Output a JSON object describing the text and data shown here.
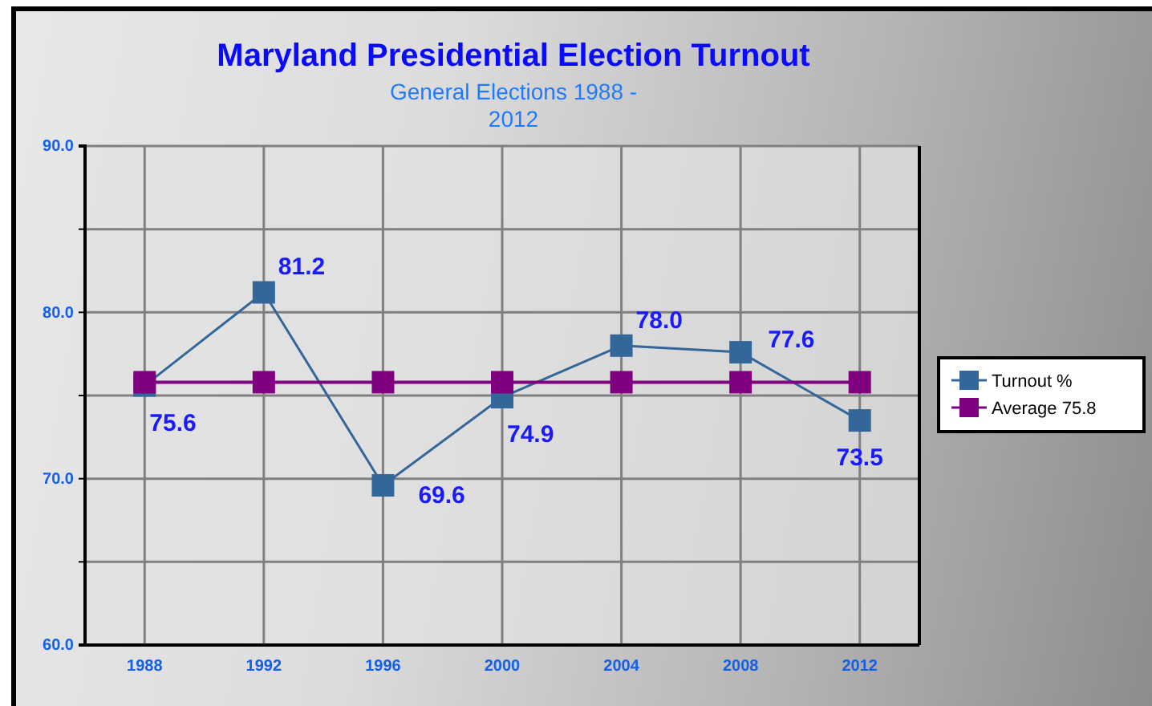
{
  "chart_data": {
    "type": "line",
    "title": "Maryland Presidential Election Turnout",
    "subtitle": "General Elections 1988 - 2012",
    "categories": [
      "1988",
      "1992",
      "1996",
      "2000",
      "2004",
      "2008",
      "2012"
    ],
    "series": [
      {
        "name": "Turnout %",
        "color": "#336699",
        "values": [
          75.6,
          81.2,
          69.6,
          74.9,
          78.0,
          77.6,
          73.5
        ],
        "value_labels": [
          "75.6",
          "81.2",
          "69.6",
          "74.9",
          "78.0",
          "77.6",
          "73.5"
        ]
      },
      {
        "name": "Average 75.8",
        "color": "#800080",
        "values": [
          75.8,
          75.8,
          75.8,
          75.8,
          75.8,
          75.8,
          75.8
        ]
      }
    ],
    "ylim": [
      60,
      90
    ],
    "yticks": [
      {
        "value": 60,
        "label": "60.0"
      },
      {
        "value": 65,
        "label": null
      },
      {
        "value": 70,
        "label": "70.0"
      },
      {
        "value": 75,
        "label": null
      },
      {
        "value": 80,
        "label": "80.0"
      },
      {
        "value": 85,
        "label": null
      },
      {
        "value": 90,
        "label": "90.0"
      }
    ],
    "grid": true,
    "legend": "right",
    "marker": "square",
    "line_style": "solid"
  }
}
